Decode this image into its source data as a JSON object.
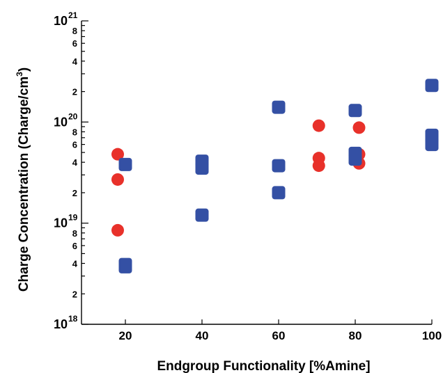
{
  "chart_data": {
    "type": "scatter",
    "xlabel": "Endgroup Functionality [%Amine]",
    "ylabel": "Charge Concentration (Charge/cm",
    "ylabel_sup": "3",
    "ylabel_close": ")",
    "yscale": "log",
    "xlim": [
      10,
      100
    ],
    "ylim": [
      1e+18,
      1e+21
    ],
    "x_ticks": [
      {
        "value": 20,
        "label": "20"
      },
      {
        "value": 40,
        "label": "40"
      },
      {
        "value": 60,
        "label": "60"
      },
      {
        "value": 80,
        "label": "80"
      },
      {
        "value": 100,
        "label": "100"
      }
    ],
    "y_major_ticks": [
      {
        "value": 1e+18,
        "base": "10",
        "exp": "18"
      },
      {
        "value": 1e+19,
        "base": "10",
        "exp": "19"
      },
      {
        "value": 1e+20,
        "base": "10",
        "exp": "20"
      },
      {
        "value": 1e+21,
        "base": "10",
        "exp": "21"
      }
    ],
    "y_minor_labels": [
      "2",
      "4",
      "6",
      "8"
    ],
    "grid": false,
    "series": [
      {
        "marker": "circle",
        "color": "#e8312a",
        "points": [
          {
            "x": 18,
            "y": 4.8e+19
          },
          {
            "x": 18,
            "y": 2.7e+19
          },
          {
            "x": 18,
            "y": 8.5e+18
          },
          {
            "x": 70.5,
            "y": 9.2e+19
          },
          {
            "x": 70.5,
            "y": 4.4e+19
          },
          {
            "x": 70.5,
            "y": 3.7e+19
          },
          {
            "x": 81,
            "y": 8.8e+19
          },
          {
            "x": 81,
            "y": 4.8e+19
          },
          {
            "x": 81,
            "y": 3.9e+19
          }
        ]
      },
      {
        "marker": "square",
        "color": "#3450a4",
        "points": [
          {
            "x": 20,
            "y": 3.8e+19
          },
          {
            "x": 20,
            "y": 3.9e+18
          },
          {
            "x": 20,
            "y": 3.7e+18
          },
          {
            "x": 40,
            "y": 4.1e+19
          },
          {
            "x": 40,
            "y": 3.8e+19
          },
          {
            "x": 40,
            "y": 3.5e+19
          },
          {
            "x": 40,
            "y": 1.2e+19
          },
          {
            "x": 60,
            "y": 1.4e+20
          },
          {
            "x": 60,
            "y": 3.7e+19
          },
          {
            "x": 60,
            "y": 2e+19
          },
          {
            "x": 80,
            "y": 1.3e+20
          },
          {
            "x": 80,
            "y": 4.9e+19
          },
          {
            "x": 80,
            "y": 4.6e+19
          },
          {
            "x": 80,
            "y": 4.3e+19
          },
          {
            "x": 100,
            "y": 2.3e+20
          },
          {
            "x": 100,
            "y": 7.4e+19
          },
          {
            "x": 100,
            "y": 6.7e+19
          },
          {
            "x": 100,
            "y": 6e+19
          }
        ]
      }
    ]
  }
}
